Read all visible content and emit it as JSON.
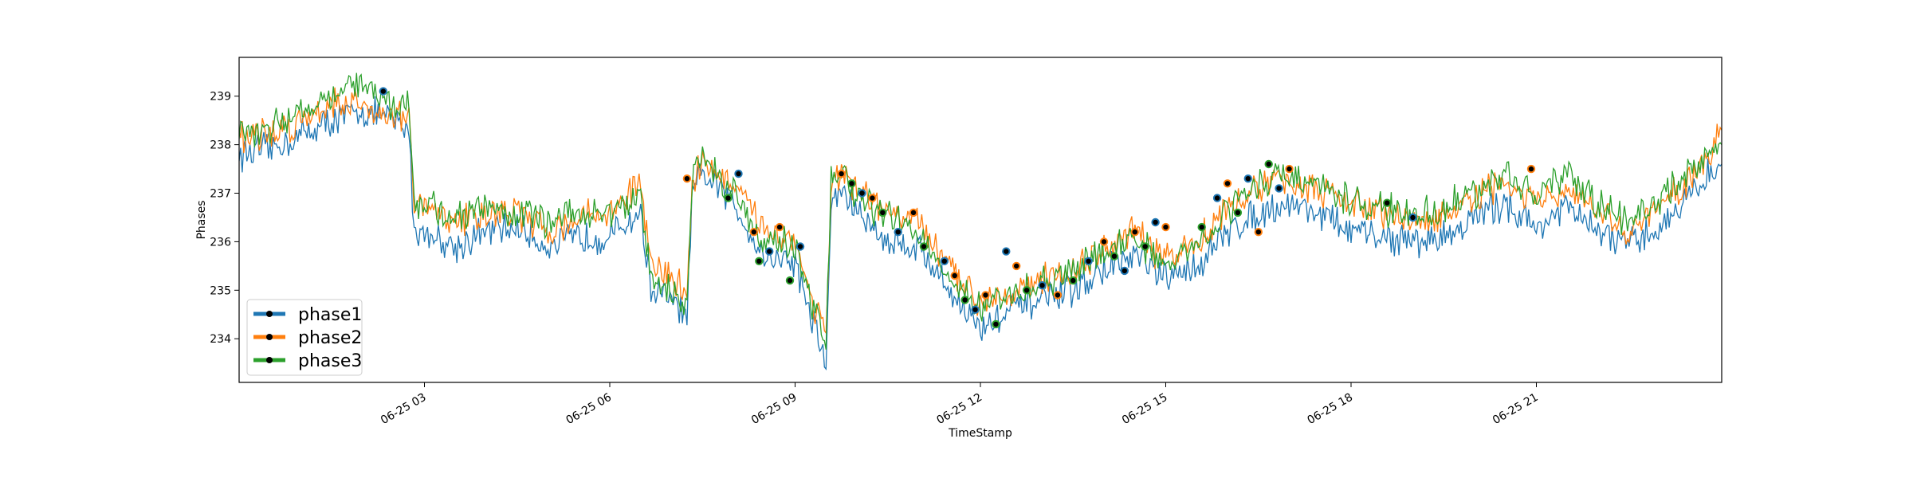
{
  "chart_data": {
    "type": "line",
    "title": "",
    "xlabel": "TimeStamp",
    "ylabel": "Phases",
    "x_ticks": [
      "06-25 03",
      "06-25 06",
      "06-25 09",
      "06-25 12",
      "06-25 15",
      "06-25 18",
      "06-25 21"
    ],
    "x_range": [
      "06-25 00:00",
      "06-26 00:00"
    ],
    "y_ticks": [
      234,
      235,
      236,
      237,
      238,
      239
    ],
    "ylim": [
      233.1,
      239.8
    ],
    "grid": false,
    "legend_position": "lower left",
    "series": [
      {
        "name": "phase1",
        "color": "#1f77b4",
        "points": [
          [
            "00:00",
            237.8
          ],
          [
            "00:30",
            237.9
          ],
          [
            "01:00",
            238.2
          ],
          [
            "01:30",
            238.5
          ],
          [
            "02:00",
            238.7
          ],
          [
            "02:30",
            238.5
          ],
          [
            "02:45",
            238.3
          ],
          [
            "02:50",
            236.2
          ],
          [
            "03:00",
            236.2
          ],
          [
            "03:30",
            235.9
          ],
          [
            "04:00",
            236.2
          ],
          [
            "04:30",
            236.3
          ],
          [
            "05:00",
            235.9
          ],
          [
            "05:30",
            236.1
          ],
          [
            "06:00",
            236.1
          ],
          [
            "06:30",
            236.6
          ],
          [
            "06:40",
            235.0
          ],
          [
            "07:00",
            234.8
          ],
          [
            "07:15",
            234.4
          ],
          [
            "07:20",
            236.9
          ],
          [
            "07:30",
            237.4
          ],
          [
            "08:00",
            236.8
          ],
          [
            "08:30",
            235.7
          ],
          [
            "09:00",
            235.6
          ],
          [
            "09:15",
            234.5
          ],
          [
            "09:30",
            233.5
          ],
          [
            "09:35",
            236.7
          ],
          [
            "09:45",
            237.1
          ],
          [
            "10:00",
            236.6
          ],
          [
            "10:30",
            236.0
          ],
          [
            "11:00",
            235.9
          ],
          [
            "11:30",
            235.0
          ],
          [
            "12:00",
            234.2
          ],
          [
            "12:30",
            234.6
          ],
          [
            "13:00",
            234.8
          ],
          [
            "13:30",
            235.0
          ],
          [
            "14:00",
            235.4
          ],
          [
            "14:30",
            235.7
          ],
          [
            "15:00",
            235.2
          ],
          [
            "15:30",
            235.5
          ],
          [
            "16:00",
            236.2
          ],
          [
            "16:30",
            236.6
          ],
          [
            "17:00",
            236.8
          ],
          [
            "17:30",
            236.6
          ],
          [
            "18:00",
            236.2
          ],
          [
            "18:30",
            236.1
          ],
          [
            "19:00",
            236.0
          ],
          [
            "19:30",
            236.1
          ],
          [
            "20:00",
            236.5
          ],
          [
            "20:30",
            236.8
          ],
          [
            "21:00",
            236.3
          ],
          [
            "21:30",
            236.7
          ],
          [
            "22:00",
            236.2
          ],
          [
            "22:30",
            235.9
          ],
          [
            "23:00",
            236.3
          ],
          [
            "23:30",
            237.0
          ],
          [
            "24:00",
            237.6
          ]
        ]
      },
      {
        "name": "phase2",
        "color": "#ff7f0e",
        "points": [
          [
            "00:00",
            238.2
          ],
          [
            "00:30",
            238.2
          ],
          [
            "01:00",
            238.5
          ],
          [
            "01:30",
            238.9
          ],
          [
            "02:00",
            238.8
          ],
          [
            "02:30",
            238.6
          ],
          [
            "02:45",
            238.6
          ],
          [
            "02:50",
            236.7
          ],
          [
            "03:00",
            236.7
          ],
          [
            "03:30",
            236.4
          ],
          [
            "04:00",
            236.6
          ],
          [
            "04:30",
            236.6
          ],
          [
            "05:00",
            236.2
          ],
          [
            "05:30",
            236.5
          ],
          [
            "06:00",
            236.6
          ],
          [
            "06:30",
            237.2
          ],
          [
            "06:40",
            235.5
          ],
          [
            "07:00",
            235.3
          ],
          [
            "07:15",
            234.9
          ],
          [
            "07:20",
            237.2
          ],
          [
            "07:30",
            237.7
          ],
          [
            "08:00",
            237.1
          ],
          [
            "08:30",
            236.3
          ],
          [
            "09:00",
            236.0
          ],
          [
            "09:15",
            234.9
          ],
          [
            "09:30",
            234.2
          ],
          [
            "09:35",
            237.1
          ],
          [
            "09:45",
            237.4
          ],
          [
            "10:00",
            237.0
          ],
          [
            "10:30",
            236.6
          ],
          [
            "11:00",
            236.4
          ],
          [
            "11:30",
            235.4
          ],
          [
            "12:00",
            234.8
          ],
          [
            "12:30",
            235.0
          ],
          [
            "13:00",
            235.2
          ],
          [
            "13:30",
            235.4
          ],
          [
            "14:00",
            235.8
          ],
          [
            "14:30",
            236.2
          ],
          [
            "15:00",
            235.6
          ],
          [
            "15:30",
            236.0
          ],
          [
            "16:00",
            236.7
          ],
          [
            "16:30",
            237.1
          ],
          [
            "17:00",
            237.3
          ],
          [
            "17:30",
            237.0
          ],
          [
            "18:00",
            236.8
          ],
          [
            "18:30",
            236.6
          ],
          [
            "19:00",
            236.4
          ],
          [
            "19:30",
            236.5
          ],
          [
            "20:00",
            236.9
          ],
          [
            "20:30",
            237.2
          ],
          [
            "21:00",
            236.8
          ],
          [
            "21:30",
            237.0
          ],
          [
            "22:00",
            236.6
          ],
          [
            "22:30",
            236.2
          ],
          [
            "23:00",
            236.7
          ],
          [
            "23:30",
            237.3
          ],
          [
            "24:00",
            238.3
          ]
        ]
      },
      {
        "name": "phase3",
        "color": "#2ca02c",
        "points": [
          [
            "00:00",
            238.3
          ],
          [
            "00:30",
            238.3
          ],
          [
            "01:00",
            238.7
          ],
          [
            "01:30",
            239.1
          ],
          [
            "02:00",
            239.2
          ],
          [
            "02:30",
            238.8
          ],
          [
            "02:45",
            238.9
          ],
          [
            "02:50",
            236.8
          ],
          [
            "03:00",
            236.8
          ],
          [
            "03:30",
            236.5
          ],
          [
            "04:00",
            236.7
          ],
          [
            "04:30",
            236.6
          ],
          [
            "05:00",
            236.4
          ],
          [
            "05:30",
            236.6
          ],
          [
            "06:00",
            236.6
          ],
          [
            "06:30",
            236.9
          ],
          [
            "06:40",
            235.2
          ],
          [
            "07:00",
            235.0
          ],
          [
            "07:15",
            234.6
          ],
          [
            "07:20",
            237.3
          ],
          [
            "07:30",
            237.8
          ],
          [
            "08:00",
            237.0
          ],
          [
            "08:30",
            236.0
          ],
          [
            "09:00",
            235.9
          ],
          [
            "09:15",
            234.8
          ],
          [
            "09:30",
            234.0
          ],
          [
            "09:35",
            237.2
          ],
          [
            "09:45",
            237.5
          ],
          [
            "10:00",
            236.9
          ],
          [
            "10:30",
            236.5
          ],
          [
            "11:00",
            236.2
          ],
          [
            "11:30",
            235.3
          ],
          [
            "12:00",
            234.6
          ],
          [
            "12:30",
            234.9
          ],
          [
            "13:00",
            235.1
          ],
          [
            "13:30",
            235.4
          ],
          [
            "14:00",
            235.8
          ],
          [
            "14:30",
            236.1
          ],
          [
            "15:00",
            235.5
          ],
          [
            "15:30",
            235.9
          ],
          [
            "16:00",
            236.7
          ],
          [
            "16:30",
            237.2
          ],
          [
            "17:00",
            237.4
          ],
          [
            "17:30",
            237.1
          ],
          [
            "18:00",
            236.8
          ],
          [
            "18:30",
            236.7
          ],
          [
            "19:00",
            236.5
          ],
          [
            "19:30",
            236.7
          ],
          [
            "20:00",
            237.0
          ],
          [
            "20:30",
            237.4
          ],
          [
            "21:00",
            237.0
          ],
          [
            "21:30",
            237.3
          ],
          [
            "22:00",
            236.8
          ],
          [
            "22:30",
            236.4
          ],
          [
            "23:00",
            236.9
          ],
          [
            "23:30",
            237.5
          ],
          [
            "24:00",
            238.0
          ]
        ]
      }
    ],
    "anomaly_markers": {
      "color": "#000000",
      "points": [
        [
          "02:20",
          239.1
        ],
        [
          "07:15",
          237.3
        ],
        [
          "07:55",
          236.9
        ],
        [
          "08:05",
          237.4
        ],
        [
          "08:20",
          236.2
        ],
        [
          "08:25",
          235.6
        ],
        [
          "08:35",
          235.8
        ],
        [
          "08:45",
          236.3
        ],
        [
          "08:55",
          235.2
        ],
        [
          "09:05",
          235.9
        ],
        [
          "09:45",
          237.4
        ],
        [
          "09:55",
          237.2
        ],
        [
          "10:05",
          237.0
        ],
        [
          "10:15",
          236.9
        ],
        [
          "10:25",
          236.6
        ],
        [
          "10:40",
          236.2
        ],
        [
          "10:55",
          236.6
        ],
        [
          "11:05",
          235.9
        ],
        [
          "11:25",
          235.6
        ],
        [
          "11:35",
          235.3
        ],
        [
          "11:45",
          234.8
        ],
        [
          "11:55",
          234.6
        ],
        [
          "12:05",
          234.9
        ],
        [
          "12:15",
          234.3
        ],
        [
          "12:25",
          235.8
        ],
        [
          "12:35",
          235.5
        ],
        [
          "12:45",
          235.0
        ],
        [
          "13:00",
          235.1
        ],
        [
          "13:15",
          234.9
        ],
        [
          "13:30",
          235.2
        ],
        [
          "13:45",
          235.6
        ],
        [
          "14:00",
          236.0
        ],
        [
          "14:10",
          235.7
        ],
        [
          "14:20",
          235.4
        ],
        [
          "14:30",
          236.2
        ],
        [
          "14:40",
          235.9
        ],
        [
          "14:50",
          236.4
        ],
        [
          "15:00",
          236.3
        ],
        [
          "15:35",
          236.3
        ],
        [
          "15:50",
          236.9
        ],
        [
          "16:00",
          237.2
        ],
        [
          "16:10",
          236.6
        ],
        [
          "16:20",
          237.3
        ],
        [
          "16:30",
          236.2
        ],
        [
          "16:40",
          237.6
        ],
        [
          "16:50",
          237.1
        ],
        [
          "17:00",
          237.5
        ],
        [
          "18:35",
          236.8
        ],
        [
          "19:00",
          236.5
        ],
        [
          "20:55",
          237.5
        ]
      ]
    }
  }
}
